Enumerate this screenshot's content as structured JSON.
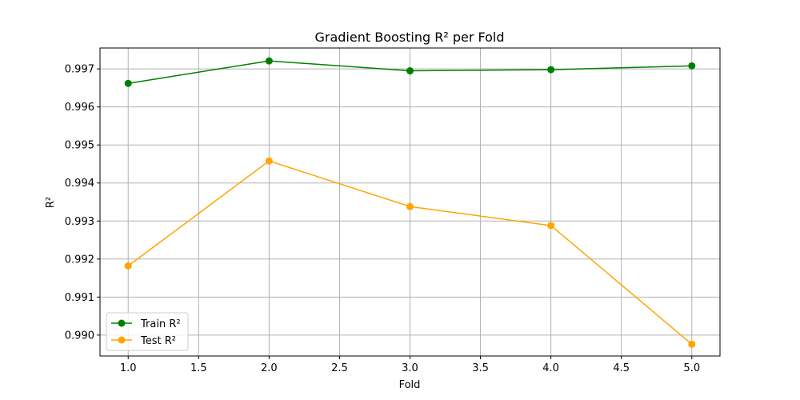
{
  "chart_data": {
    "type": "line",
    "title": "Gradient Boosting R² per Fold",
    "xlabel": "Fold",
    "ylabel": "R²",
    "x": [
      1.0,
      2.0,
      3.0,
      4.0,
      5.0
    ],
    "xlim": [
      0.8,
      5.2
    ],
    "ylim": [
      0.98945,
      0.99755
    ],
    "x_ticks": [
      "1.0",
      "1.5",
      "2.0",
      "2.5",
      "3.0",
      "3.5",
      "4.0",
      "4.5",
      "5.0"
    ],
    "y_ticks": [
      "0.990",
      "0.991",
      "0.992",
      "0.993",
      "0.994",
      "0.995",
      "0.996",
      "0.997"
    ],
    "grid": true,
    "legend_position": "lower-left",
    "series": [
      {
        "name": "Train R²",
        "color": "#008000",
        "marker": "circle",
        "values": [
          0.99662,
          0.99721,
          0.99695,
          0.99698,
          0.99708
        ]
      },
      {
        "name": "Test R²",
        "color": "#FFA500",
        "marker": "circle",
        "values": [
          0.99182,
          0.99458,
          0.99338,
          0.99288,
          0.98976
        ]
      }
    ]
  }
}
